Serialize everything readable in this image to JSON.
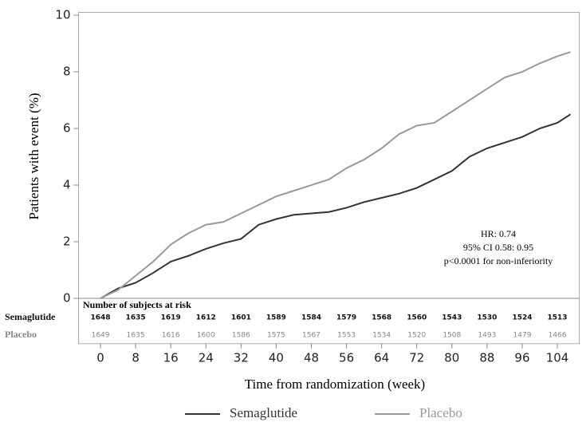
{
  "chart_data": {
    "type": "line",
    "x_label": "Time from randomization (week)",
    "y_label": "Patients with event (%)",
    "x": [
      0,
      4,
      8,
      12,
      16,
      20,
      24,
      28,
      32,
      36,
      40,
      44,
      48,
      52,
      56,
      60,
      64,
      68,
      72,
      76,
      80,
      84,
      88,
      92,
      96,
      100,
      104,
      107
    ],
    "series": [
      {
        "name": "Semaglutide",
        "color": "#333333",
        "values": [
          0,
          0.35,
          0.55,
          0.9,
          1.3,
          1.5,
          1.75,
          1.95,
          2.1,
          2.6,
          2.8,
          2.95,
          3.0,
          3.05,
          3.2,
          3.4,
          3.55,
          3.7,
          3.9,
          4.2,
          4.5,
          5.0,
          5.3,
          5.5,
          5.7,
          6.0,
          6.2,
          6.5
        ]
      },
      {
        "name": "Placebo",
        "color": "#999999",
        "values": [
          0,
          0.3,
          0.8,
          1.3,
          1.9,
          2.3,
          2.6,
          2.7,
          3.0,
          3.3,
          3.6,
          3.8,
          4.0,
          4.2,
          4.6,
          4.9,
          5.3,
          5.8,
          6.1,
          6.2,
          6.6,
          7.0,
          7.4,
          7.8,
          8.0,
          8.3,
          8.55,
          8.7
        ]
      }
    ],
    "xlim": [
      -5,
      109
    ],
    "ylim": [
      -1.6,
      10.1
    ],
    "xticks": [
      0,
      8,
      16,
      24,
      32,
      40,
      48,
      56,
      64,
      72,
      80,
      88,
      96,
      104
    ],
    "yticks": [
      0,
      2,
      4,
      6,
      8,
      10
    ],
    "annotation": [
      "HR: 0.74",
      "95% CI 0.58: 0.95",
      "p<0.0001 for non-inferiority"
    ],
    "risk_table": {
      "title": "Number of subjects at risk",
      "rows": [
        {
          "name": "Semaglutide",
          "color": "#111111",
          "values": [
            1648,
            1635,
            1619,
            1612,
            1601,
            1589,
            1584,
            1579,
            1568,
            1560,
            1543,
            1530,
            1524,
            1513
          ]
        },
        {
          "name": "Placebo",
          "color": "#888888",
          "values": [
            1649,
            1635,
            1616,
            1600,
            1586,
            1575,
            1567,
            1553,
            1534,
            1520,
            1508,
            1493,
            1479,
            1466
          ]
        }
      ]
    }
  }
}
